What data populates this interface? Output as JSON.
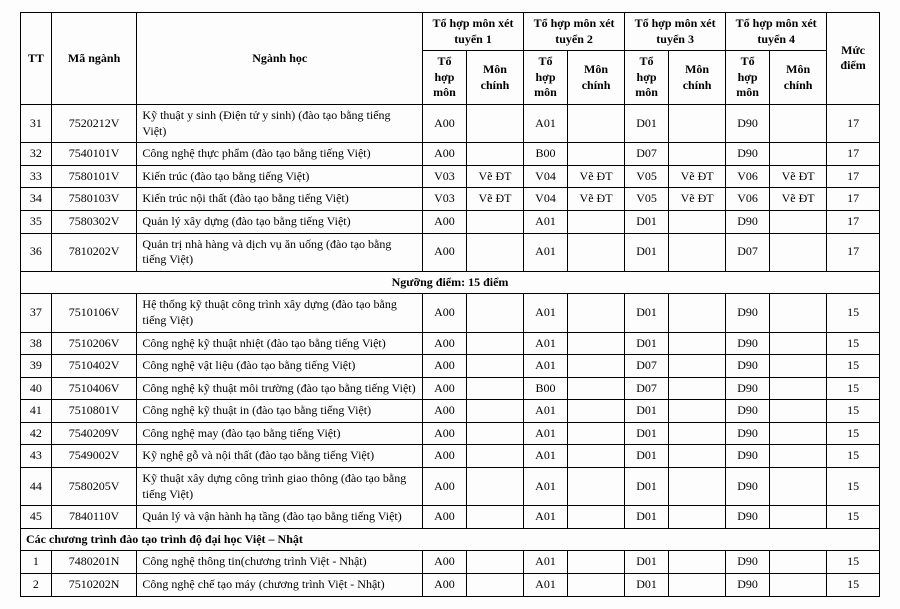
{
  "headers": {
    "tt": "TT",
    "ma": "Mã ngành",
    "nganh": "Ngành học",
    "group": "Tổ hợp môn xét tuyển",
    "thm": "Tổ hợp môn",
    "mc": "Môn chính",
    "muc": "Mức điểm"
  },
  "sections": {
    "s15": "Ngưỡng điểm: 15 điểm",
    "vj": "Các chương trình đào tạo trình độ đại học Việt – Nhật"
  },
  "rows": [
    {
      "tt": "31",
      "code": "7520212V",
      "name": "Kỹ thuật y sinh (Điện tử y sinh) (đào tạo bằng tiếng Việt)",
      "g": [
        [
          "A00",
          ""
        ],
        [
          "A01",
          ""
        ],
        [
          "D01",
          ""
        ],
        [
          "D90",
          ""
        ]
      ],
      "muc": "17"
    },
    {
      "tt": "32",
      "code": "7540101V",
      "name": "Công nghệ thực phẩm (đào tạo bằng tiếng Việt)",
      "g": [
        [
          "A00",
          ""
        ],
        [
          "B00",
          ""
        ],
        [
          "D07",
          ""
        ],
        [
          "D90",
          ""
        ]
      ],
      "muc": "17"
    },
    {
      "tt": "33",
      "code": "7580101V",
      "name": "Kiến trúc (đào tạo bằng tiếng Việt)",
      "g": [
        [
          "V03",
          "Vẽ ĐT"
        ],
        [
          "V04",
          "Vẽ ĐT"
        ],
        [
          "V05",
          "Vẽ ĐT"
        ],
        [
          "V06",
          "Vẽ ĐT"
        ]
      ],
      "muc": "17"
    },
    {
      "tt": "34",
      "code": "7580103V",
      "name": "Kiến trúc nội thất (đào tạo bằng tiếng Việt)",
      "g": [
        [
          "V03",
          "Vẽ ĐT"
        ],
        [
          "V04",
          "Vẽ ĐT"
        ],
        [
          "V05",
          "Vẽ ĐT"
        ],
        [
          "V06",
          "Vẽ ĐT"
        ]
      ],
      "muc": "17"
    },
    {
      "tt": "35",
      "code": "7580302V",
      "name": "Quản lý xây dựng (đào tạo bằng tiếng Việt)",
      "g": [
        [
          "A00",
          ""
        ],
        [
          "A01",
          ""
        ],
        [
          "D01",
          ""
        ],
        [
          "D90",
          ""
        ]
      ],
      "muc": "17"
    },
    {
      "tt": "36",
      "code": "7810202V",
      "name": "Quản trị nhà hàng và dịch vụ ăn uống (đào tạo bằng tiếng Việt)",
      "g": [
        [
          "A00",
          ""
        ],
        [
          "A01",
          ""
        ],
        [
          "D01",
          ""
        ],
        [
          "D07",
          ""
        ]
      ],
      "muc": "17"
    },
    {
      "section": "s15"
    },
    {
      "tt": "37",
      "code": "7510106V",
      "name": "Hệ thống kỹ thuật công trình xây dựng (đào tạo bằng tiếng Việt)",
      "g": [
        [
          "A00",
          ""
        ],
        [
          "A01",
          ""
        ],
        [
          "D01",
          ""
        ],
        [
          "D90",
          ""
        ]
      ],
      "muc": "15"
    },
    {
      "tt": "38",
      "code": "7510206V",
      "name": "Công nghệ kỹ thuật nhiệt (đào tạo bằng tiếng Việt)",
      "g": [
        [
          "A00",
          ""
        ],
        [
          "A01",
          ""
        ],
        [
          "D01",
          ""
        ],
        [
          "D90",
          ""
        ]
      ],
      "muc": "15"
    },
    {
      "tt": "39",
      "code": "7510402V",
      "name": "Công nghệ vật liệu (đào tạo bằng tiếng Việt)",
      "g": [
        [
          "A00",
          ""
        ],
        [
          "A01",
          ""
        ],
        [
          "D07",
          ""
        ],
        [
          "D90",
          ""
        ]
      ],
      "muc": "15"
    },
    {
      "tt": "40",
      "code": "7510406V",
      "name": "Công nghệ kỹ thuật môi trường (đào tạo bằng tiếng Việt)",
      "g": [
        [
          "A00",
          ""
        ],
        [
          "B00",
          ""
        ],
        [
          "D07",
          ""
        ],
        [
          "D90",
          ""
        ]
      ],
      "muc": "15"
    },
    {
      "tt": "41",
      "code": "7510801V",
      "name": "Công nghệ kỹ thuật in (đào tạo bằng tiếng Việt)",
      "g": [
        [
          "A00",
          ""
        ],
        [
          "A01",
          ""
        ],
        [
          "D01",
          ""
        ],
        [
          "D90",
          ""
        ]
      ],
      "muc": "15"
    },
    {
      "tt": "42",
      "code": "7540209V",
      "name": "Công nghệ may (đào tạo bằng tiếng Việt)",
      "g": [
        [
          "A00",
          ""
        ],
        [
          "A01",
          ""
        ],
        [
          "D01",
          ""
        ],
        [
          "D90",
          ""
        ]
      ],
      "muc": "15"
    },
    {
      "tt": "43",
      "code": "7549002V",
      "name": "Kỹ nghệ gỗ và nội thất (đào tạo bằng tiếng Việt)",
      "g": [
        [
          "A00",
          ""
        ],
        [
          "A01",
          ""
        ],
        [
          "D01",
          ""
        ],
        [
          "D90",
          ""
        ]
      ],
      "muc": "15"
    },
    {
      "tt": "44",
      "code": "7580205V",
      "name": "Kỹ thuật xây dựng công trình giao thông (đào tạo bằng tiếng Việt)",
      "g": [
        [
          "A00",
          ""
        ],
        [
          "A01",
          ""
        ],
        [
          "D01",
          ""
        ],
        [
          "D90",
          ""
        ]
      ],
      "muc": "15"
    },
    {
      "tt": "45",
      "code": "7840110V",
      "name": "Quản lý và vận hành hạ tầng (đào tạo bằng tiếng Việt)",
      "g": [
        [
          "A00",
          ""
        ],
        [
          "A01",
          ""
        ],
        [
          "D01",
          ""
        ],
        [
          "D90",
          ""
        ]
      ],
      "muc": "15"
    },
    {
      "section": "vj",
      "left": true
    },
    {
      "tt": "1",
      "code": "7480201N",
      "name": "Công nghệ thông tin(chương trình Việt - Nhật)",
      "g": [
        [
          "A00",
          ""
        ],
        [
          "A01",
          ""
        ],
        [
          "D01",
          ""
        ],
        [
          "D90",
          ""
        ]
      ],
      "muc": "15"
    },
    {
      "tt": "2",
      "code": "7510202N",
      "name": "Công nghệ chế tạo máy (chương trình Việt - Nhật)",
      "g": [
        [
          "A00",
          ""
        ],
        [
          "A01",
          ""
        ],
        [
          "D01",
          ""
        ],
        [
          "D90",
          ""
        ]
      ],
      "muc": "15"
    }
  ]
}
